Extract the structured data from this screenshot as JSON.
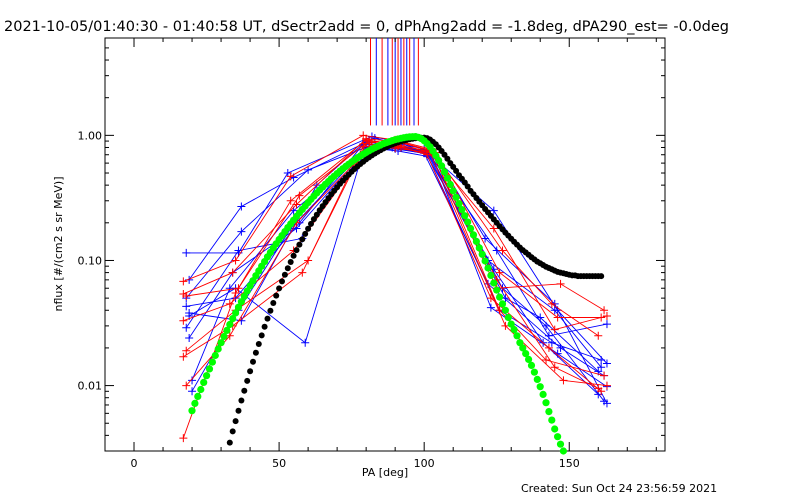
{
  "chart_data": {
    "type": "line",
    "title": "2021-10-05/01:40:30 - 01:40:58 UT, dSectr2add = 0, dPhAng2add = -1.8deg, dPA290_est= -0.0deg",
    "xlabel": "PA [deg]",
    "ylabel": "nflux [#/(cm2 s sr MeV)]",
    "footer": "Created: Sun Oct 24 23:56:59 2021",
    "xlim": [
      -10,
      183
    ],
    "ylim": [
      0.003,
      6
    ],
    "yscale": "log",
    "x_ticks": [
      {
        "value": 0,
        "label": "0"
      },
      {
        "value": 50,
        "label": "50"
      },
      {
        "value": 100,
        "label": "100"
      },
      {
        "value": 150,
        "label": "150"
      }
    ],
    "y_ticks": [
      {
        "value": 0.01,
        "label": "0.01"
      },
      {
        "value": 0.1,
        "label": "0.10"
      },
      {
        "value": 1,
        "label": "1.00"
      }
    ],
    "colors": {
      "series_a": "#ff0000",
      "series_b": "#0000ff",
      "model_black": "#000000",
      "model_green": "#00ff00"
    },
    "vertical_markers": {
      "y_from": 1.2,
      "lines": [
        {
          "x": 81.5,
          "color": "#ff0000"
        },
        {
          "x": 83.5,
          "color": "#0000ff"
        },
        {
          "x": 85.5,
          "color": "#ff0000"
        },
        {
          "x": 87.5,
          "color": "#0000ff"
        },
        {
          "x": 89.0,
          "color": "#ff0000"
        },
        {
          "x": 90.0,
          "color": "#0000ff"
        },
        {
          "x": 91.0,
          "color": "#ff0000"
        },
        {
          "x": 92.0,
          "color": "#0000ff"
        },
        {
          "x": 93.0,
          "color": "#ff0000"
        },
        {
          "x": 94.0,
          "color": "#0000ff"
        },
        {
          "x": 95.0,
          "color": "#ff0000"
        },
        {
          "x": 96.5,
          "color": "#0000ff"
        },
        {
          "x": 98.0,
          "color": "#ff0000"
        }
      ]
    },
    "series": [
      {
        "color": "#0000ff",
        "x": [
          18,
          36,
          53,
          82,
          90,
          101,
          128,
          140,
          160
        ],
        "y": [
          0.115,
          0.115,
          0.5,
          0.98,
          0.9,
          0.72,
          0.05,
          0.035,
          0.013
        ]
      },
      {
        "color": "#0000ff",
        "x": [
          19,
          37,
          55,
          83,
          91,
          102,
          127,
          142,
          162
        ],
        "y": [
          0.07,
          0.27,
          0.46,
          0.95,
          0.85,
          0.7,
          0.06,
          0.03,
          0.0075
        ]
      },
      {
        "color": "#0000ff",
        "x": [
          18,
          37,
          60,
          81,
          90,
          101,
          125,
          143,
          163
        ],
        "y": [
          0.05,
          0.17,
          0.53,
          0.82,
          0.8,
          0.75,
          0.12,
          0.025,
          0.031
        ]
      },
      {
        "color": "#0000ff",
        "x": [
          19,
          35,
          59,
          80,
          92,
          100,
          126,
          144,
          161
        ],
        "y": [
          0.036,
          0.06,
          0.022,
          0.88,
          0.85,
          0.78,
          0.04,
          0.022,
          0.016
        ]
      },
      {
        "color": "#0000ff",
        "x": [
          18,
          36,
          58,
          80,
          91,
          101,
          122,
          145,
          161
        ],
        "y": [
          0.029,
          0.12,
          0.15,
          0.8,
          0.75,
          0.68,
          0.1,
          0.04,
          0.014
        ]
      },
      {
        "color": "#0000ff",
        "x": [
          19,
          34,
          56,
          79,
          89,
          102,
          124,
          146,
          163
        ],
        "y": [
          0.024,
          0.08,
          0.18,
          0.72,
          0.8,
          0.7,
          0.25,
          0.04,
          0.015
        ]
      },
      {
        "color": "#0000ff",
        "x": [
          20,
          33,
          55,
          80,
          90,
          100,
          122,
          147,
          162
        ],
        "y": [
          0.011,
          0.06,
          0.25,
          0.75,
          0.78,
          0.72,
          0.065,
          0.02,
          0.012
        ]
      },
      {
        "color": "#0000ff",
        "x": [
          18,
          35,
          57,
          79,
          90,
          101,
          124,
          141,
          160
        ],
        "y": [
          0.043,
          0.05,
          0.2,
          0.85,
          0.82,
          0.74,
          0.085,
          0.022,
          0.0085
        ]
      },
      {
        "color": "#0000ff",
        "x": [
          19,
          37,
          63,
          80,
          91,
          102,
          123,
          146,
          163
        ],
        "y": [
          0.038,
          0.033,
          0.4,
          0.9,
          0.78,
          0.76,
          0.042,
          0.018,
          0.0098
        ]
      },
      {
        "color": "#0000ff",
        "x": [
          20,
          36,
          54,
          78,
          88,
          103,
          121,
          145,
          163
        ],
        "y": [
          0.009,
          0.04,
          0.18,
          0.7,
          0.83,
          0.75,
          0.15,
          0.045,
          0.0072
        ]
      },
      {
        "color": "#ff0000",
        "x": [
          17,
          35,
          54,
          79,
          90,
          102,
          125,
          147,
          162
        ],
        "y": [
          0.068,
          0.1,
          0.47,
          1.0,
          0.92,
          0.78,
          0.06,
          0.065,
          0.04
        ]
      },
      {
        "color": "#ff0000",
        "x": [
          17,
          34,
          56,
          80,
          92,
          103,
          127,
          144,
          160
        ],
        "y": [
          0.054,
          0.08,
          0.28,
          0.94,
          0.88,
          0.75,
          0.12,
          0.045,
          0.025
        ]
      },
      {
        "color": "#ff0000",
        "x": [
          18,
          36,
          57,
          81,
          93,
          104,
          126,
          146,
          161
        ],
        "y": [
          0.052,
          0.06,
          0.33,
          0.9,
          0.86,
          0.73,
          0.08,
          0.035,
          0.035
        ]
      },
      {
        "color": "#ff0000",
        "x": [
          17,
          33,
          55,
          82,
          91,
          102,
          124,
          145,
          163
        ],
        "y": [
          0.033,
          0.045,
          0.12,
          0.88,
          0.84,
          0.74,
          0.18,
          0.028,
          0.036
        ]
      },
      {
        "color": "#ff0000",
        "x": [
          18,
          35,
          60,
          80,
          92,
          101,
          123,
          143,
          161
        ],
        "y": [
          0.019,
          0.04,
          0.1,
          0.86,
          0.8,
          0.7,
          0.05,
          0.02,
          0.009
        ]
      },
      {
        "color": "#ff0000",
        "x": [
          17,
          34,
          58,
          79,
          90,
          103,
          126,
          142,
          162
        ],
        "y": [
          0.017,
          0.03,
          0.08,
          0.82,
          0.79,
          0.72,
          0.04,
          0.016,
          0.012
        ]
      },
      {
        "color": "#ff0000",
        "x": [
          18,
          33,
          56,
          81,
          91,
          104,
          125,
          145,
          160
        ],
        "y": [
          0.01,
          0.025,
          0.2,
          0.78,
          0.82,
          0.68,
          0.07,
          0.014,
          0.0095
        ]
      },
      {
        "color": "#ff0000",
        "x": [
          17,
          35,
          54,
          80,
          89,
          102,
          128,
          148,
          163
        ],
        "y": [
          0.0038,
          0.055,
          0.3,
          0.92,
          0.86,
          0.73,
          0.03,
          0.011,
          0.01
        ]
      }
    ],
    "model_black": {
      "color": "#000000",
      "x": [
        33,
        34,
        35,
        36,
        37,
        38,
        39,
        40,
        41,
        42,
        43,
        44,
        45,
        46,
        47,
        48,
        49,
        50,
        51,
        52,
        53,
        54,
        55,
        56,
        57,
        58,
        59,
        60,
        61,
        62,
        63,
        64,
        65,
        66,
        67,
        68,
        69,
        70,
        71,
        72,
        73,
        74,
        75,
        76,
        77,
        78,
        79,
        80,
        81,
        82,
        83,
        84,
        85,
        86,
        87,
        88,
        89,
        90,
        91,
        92,
        93,
        94,
        95,
        96,
        97,
        98,
        99,
        100,
        101,
        102,
        103,
        104,
        105,
        106,
        107,
        108,
        109,
        110,
        111,
        112,
        113,
        114,
        115,
        116,
        117,
        118,
        119,
        120,
        121,
        122,
        123,
        124,
        125,
        126,
        127,
        128,
        129,
        130,
        131,
        132,
        133,
        134,
        135,
        136,
        137,
        138,
        139,
        140,
        141,
        142,
        143,
        144,
        145,
        146,
        147,
        148,
        149,
        150,
        151,
        152,
        153,
        154,
        155,
        156,
        157,
        158,
        159,
        160,
        161
      ],
      "y": [
        0.0035,
        0.0043,
        0.0052,
        0.0063,
        0.0076,
        0.0091,
        0.0109,
        0.013,
        0.0155,
        0.0183,
        0.0215,
        0.0252,
        0.0295,
        0.0343,
        0.0397,
        0.0457,
        0.0524,
        0.0598,
        0.068,
        0.0769,
        0.0866,
        0.0972,
        0.109,
        0.121,
        0.134,
        0.148,
        0.163,
        0.179,
        0.196,
        0.214,
        0.232,
        0.252,
        0.272,
        0.293,
        0.315,
        0.338,
        0.361,
        0.385,
        0.41,
        0.435,
        0.46,
        0.486,
        0.512,
        0.538,
        0.564,
        0.59,
        0.616,
        0.642,
        0.667,
        0.692,
        0.716,
        0.74,
        0.763,
        0.785,
        0.806,
        0.826,
        0.845,
        0.863,
        0.879,
        0.894,
        0.908,
        0.92,
        0.931,
        0.94,
        0.948,
        0.954,
        0.958,
        0.96,
        0.951,
        0.927,
        0.89,
        0.85,
        0.8,
        0.75,
        0.7,
        0.65,
        0.6,
        0.56,
        0.52,
        0.48,
        0.45,
        0.42,
        0.39,
        0.36,
        0.338,
        0.316,
        0.295,
        0.276,
        0.258,
        0.242,
        0.227,
        0.213,
        0.2,
        0.188,
        0.177,
        0.167,
        0.158,
        0.149,
        0.141,
        0.134,
        0.127,
        0.121,
        0.116,
        0.111,
        0.106,
        0.102,
        0.098,
        0.095,
        0.092,
        0.089,
        0.087,
        0.085,
        0.083,
        0.081,
        0.08,
        0.079,
        0.078,
        0.077,
        0.076,
        0.076,
        0.075,
        0.075,
        0.075,
        0.075,
        0.075,
        0.075,
        0.075,
        0.075,
        0.075
      ]
    },
    "model_green": {
      "color": "#00ff00",
      "x": [
        20,
        21,
        22,
        23,
        24,
        25,
        26,
        27,
        28,
        29,
        30,
        31,
        32,
        33,
        34,
        35,
        36,
        37,
        38,
        39,
        40,
        41,
        42,
        43,
        44,
        45,
        46,
        47,
        48,
        49,
        50,
        51,
        52,
        53,
        54,
        55,
        56,
        57,
        58,
        59,
        60,
        61,
        62,
        63,
        64,
        65,
        66,
        67,
        68,
        69,
        70,
        71,
        72,
        73,
        74,
        75,
        76,
        77,
        78,
        79,
        80,
        81,
        82,
        83,
        84,
        85,
        86,
        87,
        88,
        89,
        90,
        91,
        92,
        93,
        94,
        95,
        96,
        97,
        98,
        99,
        100,
        101,
        102,
        103,
        104,
        105,
        106,
        107,
        108,
        109,
        110,
        111,
        112,
        113,
        114,
        115,
        116,
        117,
        118,
        119,
        120,
        121,
        122,
        123,
        124,
        125,
        126,
        127,
        128,
        129,
        130,
        131,
        132,
        133,
        134,
        135,
        136,
        137,
        138,
        139,
        140,
        141,
        142,
        143,
        144,
        145,
        146,
        147,
        148
      ],
      "y": [
        0.0063,
        0.0072,
        0.0082,
        0.0093,
        0.0106,
        0.012,
        0.0136,
        0.0154,
        0.0174,
        0.0196,
        0.022,
        0.0247,
        0.0276,
        0.0308,
        0.0343,
        0.0381,
        0.0423,
        0.0468,
        0.0517,
        0.057,
        0.0627,
        0.0689,
        0.0755,
        0.0825,
        0.09,
        0.098,
        0.107,
        0.116,
        0.126,
        0.136,
        0.147,
        0.158,
        0.17,
        0.183,
        0.196,
        0.21,
        0.225,
        0.24,
        0.256,
        0.273,
        0.29,
        0.308,
        0.327,
        0.346,
        0.366,
        0.386,
        0.407,
        0.428,
        0.45,
        0.472,
        0.495,
        0.518,
        0.541,
        0.565,
        0.588,
        0.612,
        0.636,
        0.66,
        0.684,
        0.707,
        0.73,
        0.753,
        0.775,
        0.797,
        0.818,
        0.838,
        0.857,
        0.875,
        0.892,
        0.908,
        0.923,
        0.936,
        0.948,
        0.958,
        0.966,
        0.972,
        0.976,
        0.978,
        0.965,
        0.94,
        0.905,
        0.86,
        0.81,
        0.75,
        0.69,
        0.63,
        0.57,
        0.51,
        0.455,
        0.405,
        0.36,
        0.32,
        0.285,
        0.255,
        0.228,
        0.203,
        0.18,
        0.16,
        0.142,
        0.126,
        0.112,
        0.099,
        0.087,
        0.076,
        0.066,
        0.058,
        0.051,
        0.045,
        0.04,
        0.035,
        0.031,
        0.028,
        0.025,
        0.022,
        0.02,
        0.018,
        0.0162,
        0.0145,
        0.0128,
        0.0112,
        0.0098,
        0.0085,
        0.0073,
        0.0062,
        0.0053,
        0.0045,
        0.0039,
        0.0034,
        0.003
      ]
    }
  }
}
